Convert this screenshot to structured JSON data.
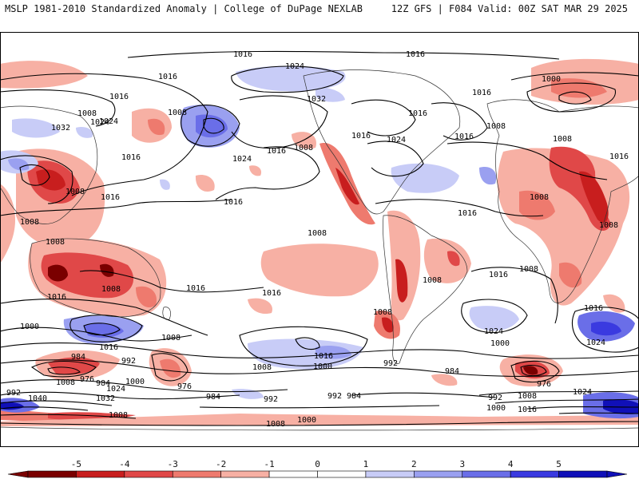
{
  "header": {
    "left_title": "MSLP 1981-2010 Standardized Anomaly | College of DuPage NEXLAB",
    "right_title": "12Z GFS | F084 Valid: 00Z SAT MAR 29 2025"
  },
  "colorbar": {
    "ticks": [
      "-5",
      "-4",
      "-3",
      "-2",
      "-1",
      "0",
      "1",
      "2",
      "3",
      "4",
      "5"
    ],
    "colors": [
      "#7a0000",
      "#c81e1e",
      "#e04848",
      "#ee7a6e",
      "#f7b0a4",
      "#ffffff",
      "#ffffff",
      "#c8ccf7",
      "#9aa0f0",
      "#6a6ee8",
      "#3a3ae0",
      "#1010b8"
    ]
  },
  "map": {
    "background": "#ffffff",
    "isobar_labels": [
      "1016",
      "1024",
      "1016",
      "1016",
      "1000",
      "1016",
      "1008",
      "1024",
      "1016",
      "1032",
      "1016",
      "1032",
      "1008",
      "1024",
      "1016",
      "1016",
      "1008",
      "1024",
      "1016",
      "1008",
      "1016",
      "1024",
      "1016",
      "1016",
      "1016",
      "1016",
      "1008",
      "1008",
      "1008",
      "1008",
      "1008",
      "1008",
      "1008",
      "1016",
      "1016",
      "1016",
      "1016",
      "1016",
      "1000",
      "1016",
      "1024",
      "1024",
      "1008",
      "1008",
      "1008",
      "1008",
      "1000",
      "1016",
      "1008",
      "992",
      "984",
      "992",
      "976",
      "984",
      "1008",
      "1000",
      "976",
      "984",
      "1024",
      "1032",
      "1040",
      "992",
      "1008",
      "992",
      "984",
      "992",
      "984",
      "992",
      "1000",
      "976",
      "1008",
      "1024",
      "1016",
      "1000",
      "1008",
      "1000",
      "1008"
    ]
  }
}
